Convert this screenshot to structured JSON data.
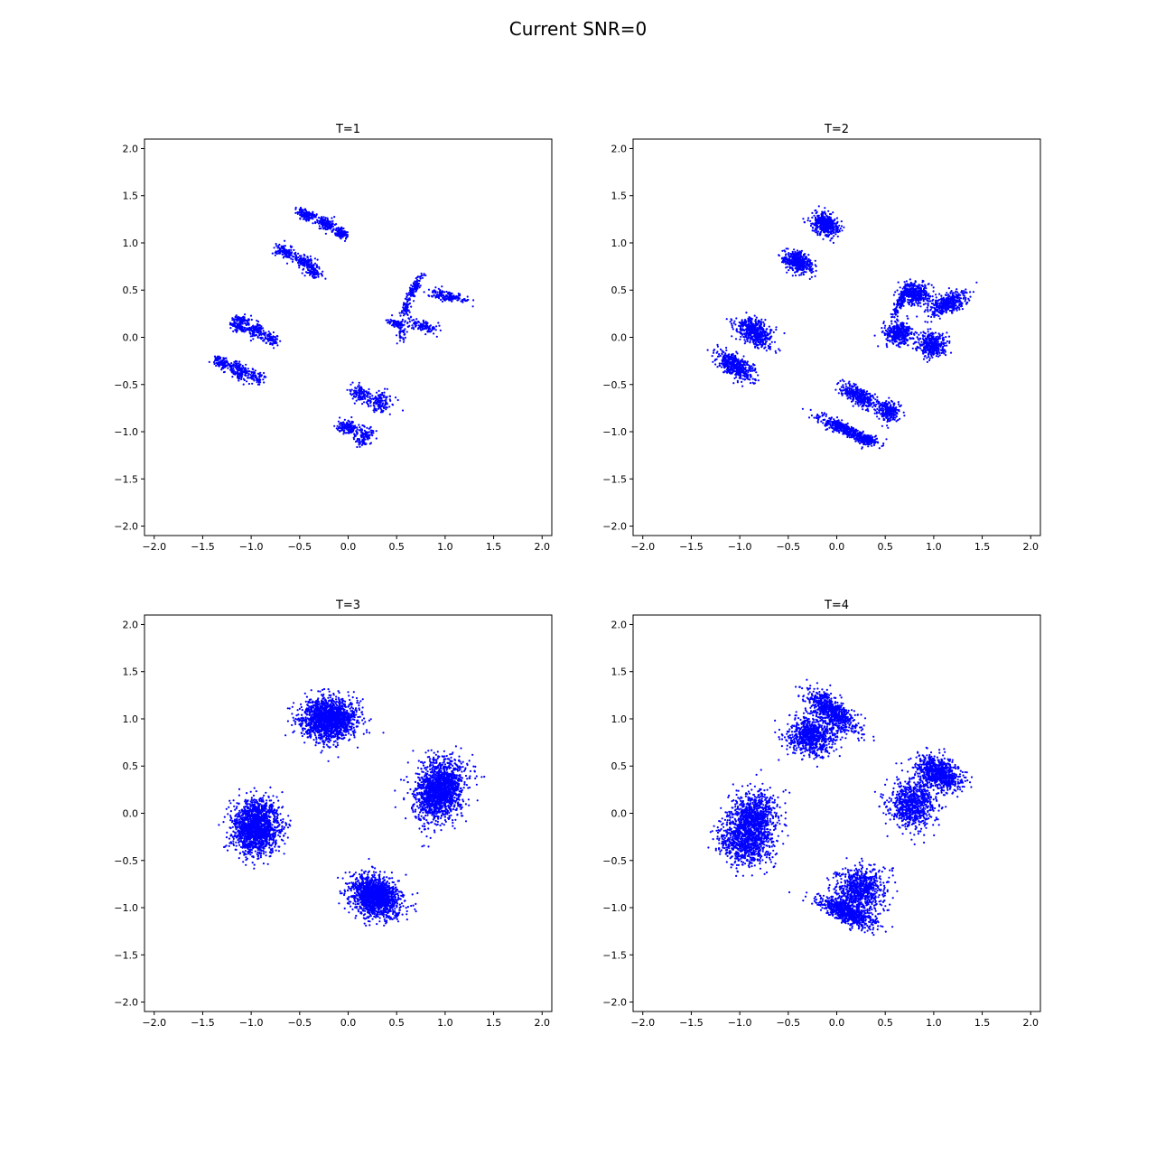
{
  "figure": {
    "suptitle": "Current SNR=0"
  },
  "chart_data": [
    {
      "type": "scatter",
      "title": "T=1",
      "xlim": [
        -2.1,
        2.1
      ],
      "ylim": [
        -2.1,
        2.1
      ],
      "xticks": [
        "−2.0",
        "−1.5",
        "−1.0",
        "−0.5",
        "0.0",
        "0.5",
        "1.0",
        "1.5",
        "2.0"
      ],
      "yticks": [
        "−2.0",
        "−1.5",
        "−1.0",
        "−0.5",
        "0.0",
        "0.5",
        "1.0",
        "1.5",
        "2.0"
      ],
      "grid": false,
      "point_color": "#0000ff",
      "clusters": [
        {
          "cx": -0.43,
          "cy": 1.3,
          "sx": 0.05,
          "sy": 0.025,
          "rot": -20,
          "n": 140
        },
        {
          "cx": -0.22,
          "cy": 1.2,
          "sx": 0.06,
          "sy": 0.03,
          "rot": -25,
          "n": 160
        },
        {
          "cx": -0.06,
          "cy": 1.1,
          "sx": 0.04,
          "sy": 0.025,
          "rot": -25,
          "n": 90
        },
        {
          "cx": -0.65,
          "cy": 0.91,
          "sx": 0.05,
          "sy": 0.03,
          "rot": -20,
          "n": 120
        },
        {
          "cx": -0.45,
          "cy": 0.8,
          "sx": 0.07,
          "sy": 0.03,
          "rot": -25,
          "n": 160
        },
        {
          "cx": -0.35,
          "cy": 0.68,
          "sx": 0.04,
          "sy": 0.02,
          "rot": -15,
          "n": 70
        },
        {
          "cx": -1.1,
          "cy": 0.18,
          "sx": 0.04,
          "sy": 0.03,
          "rot": -20,
          "n": 90
        },
        {
          "cx": -1.13,
          "cy": 0.1,
          "sx": 0.04,
          "sy": 0.025,
          "rot": -20,
          "n": 70
        },
        {
          "cx": -0.95,
          "cy": 0.07,
          "sx": 0.05,
          "sy": 0.04,
          "rot": -25,
          "n": 130
        },
        {
          "cx": -0.8,
          "cy": -0.01,
          "sx": 0.04,
          "sy": 0.03,
          "rot": -25,
          "n": 80
        },
        {
          "cx": -1.3,
          "cy": -0.27,
          "sx": 0.05,
          "sy": 0.03,
          "rot": -25,
          "n": 100
        },
        {
          "cx": -1.12,
          "cy": -0.35,
          "sx": 0.07,
          "sy": 0.04,
          "rot": -25,
          "n": 160
        },
        {
          "cx": -0.95,
          "cy": -0.42,
          "sx": 0.04,
          "sy": 0.03,
          "rot": -25,
          "n": 70
        },
        {
          "cx": 0.68,
          "cy": 0.52,
          "sx": 0.08,
          "sy": 0.02,
          "rot": 60,
          "n": 130
        },
        {
          "cx": 0.6,
          "cy": 0.3,
          "sx": 0.04,
          "sy": 0.02,
          "rot": 70,
          "n": 60
        },
        {
          "cx": 1.02,
          "cy": 0.44,
          "sx": 0.1,
          "sy": 0.03,
          "rot": -15,
          "n": 150
        },
        {
          "cx": 0.5,
          "cy": 0.15,
          "sx": 0.05,
          "sy": 0.02,
          "rot": -15,
          "n": 70
        },
        {
          "cx": 0.77,
          "cy": 0.12,
          "sx": 0.08,
          "sy": 0.03,
          "rot": -15,
          "n": 120
        },
        {
          "cx": 0.55,
          "cy": 0.04,
          "sx": 0.02,
          "sy": 0.05,
          "rot": 0,
          "n": 40
        },
        {
          "cx": 0.12,
          "cy": -0.59,
          "sx": 0.05,
          "sy": 0.04,
          "rot": -20,
          "n": 100
        },
        {
          "cx": 0.32,
          "cy": -0.68,
          "sx": 0.07,
          "sy": 0.05,
          "rot": -20,
          "n": 140
        },
        {
          "cx": 0.0,
          "cy": -0.95,
          "sx": 0.06,
          "sy": 0.04,
          "rot": -15,
          "n": 140
        },
        {
          "cx": 0.16,
          "cy": -1.05,
          "sx": 0.05,
          "sy": 0.05,
          "rot": -20,
          "n": 120
        }
      ]
    },
    {
      "type": "scatter",
      "title": "T=2",
      "xlim": [
        -2.1,
        2.1
      ],
      "ylim": [
        -2.1,
        2.1
      ],
      "xticks": [
        "−2.0",
        "−1.5",
        "−1.0",
        "−0.5",
        "0.0",
        "0.5",
        "1.0",
        "1.5",
        "2.0"
      ],
      "yticks": [
        "−2.0",
        "−1.5",
        "−1.0",
        "−0.5",
        "0.0",
        "0.5",
        "1.0",
        "1.5",
        "2.0"
      ],
      "grid": false,
      "point_color": "#0000ff",
      "clusters": [
        {
          "cx": -0.12,
          "cy": 1.2,
          "sx": 0.07,
          "sy": 0.055,
          "rot": -30,
          "n": 450
        },
        {
          "cx": -0.4,
          "cy": 0.8,
          "sx": 0.08,
          "sy": 0.05,
          "rot": -30,
          "n": 450
        },
        {
          "cx": -0.85,
          "cy": 0.05,
          "sx": 0.1,
          "sy": 0.06,
          "rot": -35,
          "n": 500
        },
        {
          "cx": -1.05,
          "cy": -0.3,
          "sx": 0.1,
          "sy": 0.05,
          "rot": -35,
          "n": 500
        },
        {
          "cx": 0.82,
          "cy": 0.46,
          "sx": 0.08,
          "sy": 0.06,
          "rot": -20,
          "n": 350
        },
        {
          "cx": 1.15,
          "cy": 0.36,
          "sx": 0.1,
          "sy": 0.05,
          "rot": 25,
          "n": 380
        },
        {
          "cx": 0.66,
          "cy": 0.38,
          "sx": 0.09,
          "sy": 0.02,
          "rot": 65,
          "n": 160
        },
        {
          "cx": 0.64,
          "cy": 0.05,
          "sx": 0.07,
          "sy": 0.06,
          "rot": 0,
          "n": 380
        },
        {
          "cx": 0.98,
          "cy": -0.08,
          "sx": 0.07,
          "sy": 0.06,
          "rot": 0,
          "n": 380
        },
        {
          "cx": 0.22,
          "cy": -0.62,
          "sx": 0.1,
          "sy": 0.04,
          "rot": -30,
          "n": 350
        },
        {
          "cx": 0.53,
          "cy": -0.78,
          "sx": 0.06,
          "sy": 0.05,
          "rot": -20,
          "n": 250
        },
        {
          "cx": 0.05,
          "cy": -0.96,
          "sx": 0.14,
          "sy": 0.03,
          "rot": -25,
          "n": 350
        },
        {
          "cx": 0.3,
          "cy": -1.08,
          "sx": 0.07,
          "sy": 0.03,
          "rot": -20,
          "n": 180
        }
      ]
    },
    {
      "type": "scatter",
      "title": "T=3",
      "xlim": [
        -2.1,
        2.1
      ],
      "ylim": [
        -2.1,
        2.1
      ],
      "xticks": [
        "−2.0",
        "−1.5",
        "−1.0",
        "−0.5",
        "0.0",
        "0.5",
        "1.0",
        "1.5",
        "2.0"
      ],
      "yticks": [
        "−2.0",
        "−1.5",
        "−1.0",
        "−0.5",
        "0.0",
        "0.5",
        "1.0",
        "1.5",
        "2.0"
      ],
      "grid": false,
      "point_color": "#0000ff",
      "clusters": [
        {
          "cx": -0.2,
          "cy": 1.0,
          "sx": 0.14,
          "sy": 0.11,
          "rot": 0,
          "n": 1700
        },
        {
          "cx": 0.95,
          "cy": 0.25,
          "sx": 0.12,
          "sy": 0.16,
          "rot": -20,
          "n": 1700
        },
        {
          "cx": -0.95,
          "cy": -0.15,
          "sx": 0.12,
          "sy": 0.14,
          "rot": 0,
          "n": 1700
        },
        {
          "cx": 0.28,
          "cy": -0.88,
          "sx": 0.13,
          "sy": 0.1,
          "rot": -30,
          "n": 1700
        }
      ]
    },
    {
      "type": "scatter",
      "title": "T=4",
      "xlim": [
        -2.1,
        2.1
      ],
      "ylim": [
        -2.1,
        2.1
      ],
      "xticks": [
        "−2.0",
        "−1.5",
        "−1.0",
        "−0.5",
        "0.0",
        "0.5",
        "1.0",
        "1.5",
        "2.0"
      ],
      "yticks": [
        "−2.0",
        "−1.5",
        "−1.0",
        "−0.5",
        "0.0",
        "0.5",
        "1.0",
        "1.5",
        "2.0"
      ],
      "grid": false,
      "point_color": "#0000ff",
      "clusters": [
        {
          "cx": -0.25,
          "cy": 0.82,
          "sx": 0.12,
          "sy": 0.1,
          "rot": 0,
          "n": 800
        },
        {
          "cx": -0.05,
          "cy": 1.08,
          "sx": 0.16,
          "sy": 0.06,
          "rot": -40,
          "n": 700
        },
        {
          "cx": 1.05,
          "cy": 0.42,
          "sx": 0.12,
          "sy": 0.08,
          "rot": -30,
          "n": 800
        },
        {
          "cx": 0.78,
          "cy": 0.1,
          "sx": 0.12,
          "sy": 0.13,
          "rot": 0,
          "n": 800
        },
        {
          "cx": -0.95,
          "cy": -0.3,
          "sx": 0.14,
          "sy": 0.12,
          "rot": -30,
          "n": 800
        },
        {
          "cx": -0.85,
          "cy": -0.05,
          "sx": 0.12,
          "sy": 0.14,
          "rot": 0,
          "n": 800
        },
        {
          "cx": 0.25,
          "cy": -0.82,
          "sx": 0.13,
          "sy": 0.12,
          "rot": 0,
          "n": 800
        },
        {
          "cx": 0.1,
          "cy": -1.05,
          "sx": 0.16,
          "sy": 0.05,
          "rot": -25,
          "n": 700
        }
      ]
    }
  ]
}
